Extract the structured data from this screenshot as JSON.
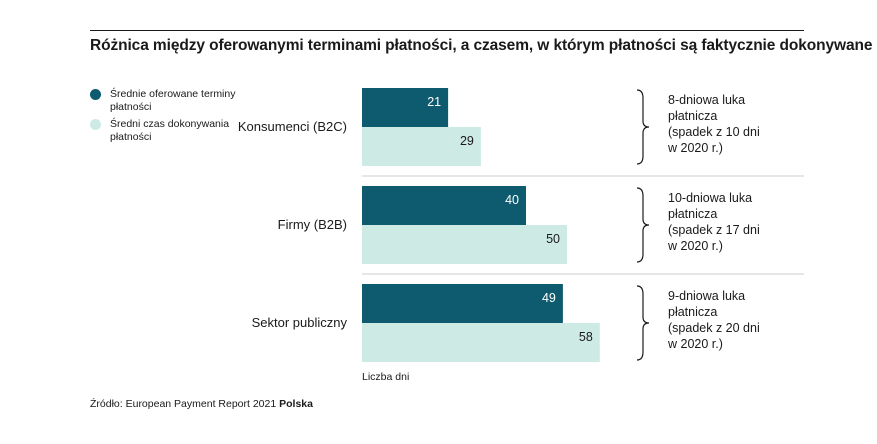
{
  "colors": {
    "offered": "#0e5a6e",
    "actual": "#cdeae4",
    "rule": "#cccccc",
    "text": "#1a1a1a"
  },
  "title": "Różnica między oferowanymi terminami płatności, a czasem, w którym płatności są faktycznie dokonywane",
  "legend": [
    {
      "label": "Średnie oferowane terminy płatności",
      "color": "#0e5a6e"
    },
    {
      "label": "Średni czas dokonywania płatności",
      "color": "#cdeae4"
    }
  ],
  "source": {
    "prefix": "Źródło: European Payment Report 2021 ",
    "bold": "Polska"
  },
  "chart_data": {
    "type": "bar",
    "orientation": "horizontal",
    "categories": [
      "Konsumenci (B2C)",
      "Firmy (B2B)",
      "Sektor publiczny"
    ],
    "series": [
      {
        "name": "Średnie oferowane terminy płatności",
        "values": [
          21,
          40,
          49
        ]
      },
      {
        "name": "Średni czas dokonywania płatności",
        "values": [
          29,
          50,
          58
        ]
      }
    ],
    "xlabel": "Liczba dni",
    "ylabel": "",
    "annotations": [
      [
        "8-dniowa luka",
        "płatnicza",
        "(spadek z 10 dni",
        "w 2020 r.)"
      ],
      [
        "10-dniowa luka",
        "płatnicza",
        "(spadek z 17 dni",
        "w 2020 r.)"
      ],
      [
        "9-dniowa luka",
        "płatnicza",
        "(spadek z 20 dni",
        "w 2020 r.)"
      ]
    ]
  }
}
